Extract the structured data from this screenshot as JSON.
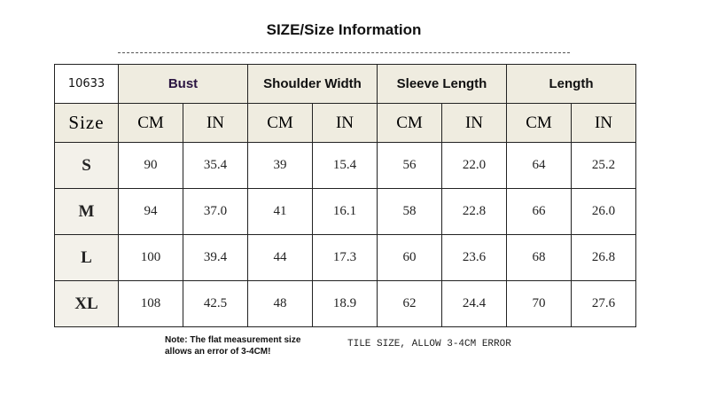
{
  "header": {
    "title": "SIZE/Size Information"
  },
  "table": {
    "header_rows": [
      [
        "10633",
        "Bust",
        "Shoulder Width",
        "Sleeve Length",
        "Length"
      ],
      [
        "Size",
        "CM",
        "IN",
        "CM",
        "IN",
        "CM",
        "IN",
        "CM",
        "IN"
      ]
    ],
    "rows": [
      [
        "S",
        "90",
        "35.4",
        "39",
        "15.4",
        "56",
        "22.0",
        "64",
        "25.2"
      ],
      [
        "M",
        "94",
        "37.0",
        "41",
        "16.1",
        "58",
        "22.8",
        "66",
        "26.0"
      ],
      [
        "L",
        "100",
        "39.4",
        "44",
        "17.3",
        "60",
        "23.6",
        "68",
        "26.8"
      ],
      [
        "XL",
        "108",
        "42.5",
        "48",
        "18.9",
        "62",
        "24.4",
        "70",
        "27.6"
      ]
    ]
  },
  "notes": {
    "note_lines": [
      "Note: The flat measurement size",
      "allows an error of 3-4CM!"
    ],
    "tile_note": "TILE SIZE, ALLOW 3-4CM ERROR"
  }
}
